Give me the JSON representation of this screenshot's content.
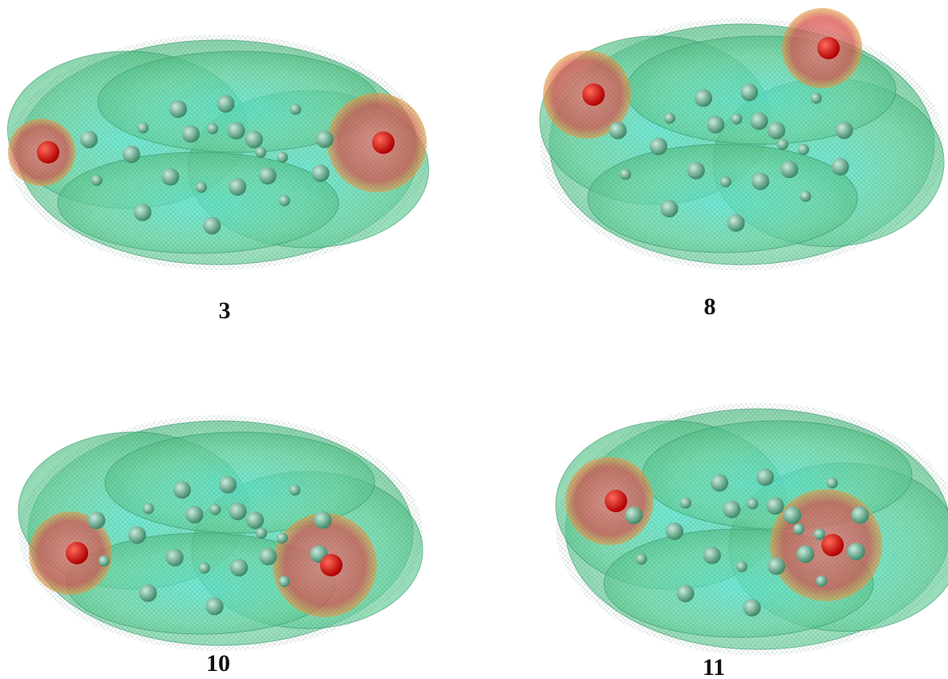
{
  "panels": [
    {
      "label": "3"
    },
    {
      "label": "8"
    },
    {
      "label": "10"
    },
    {
      "label": "11"
    }
  ]
}
